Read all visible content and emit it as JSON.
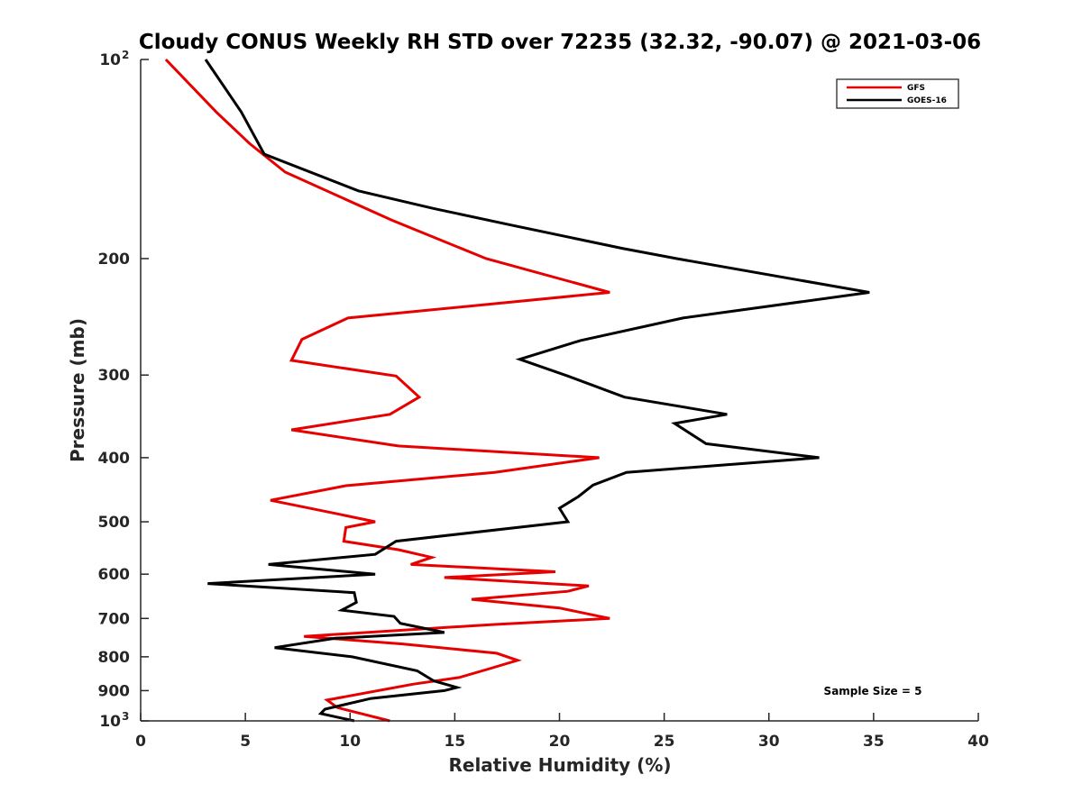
{
  "chart_data": {
    "type": "line",
    "title": "Cloudy CONUS Weekly RH STD over 72235 (32.32, -90.07) @ 2021-03-06",
    "xlabel": "Relative Humidity (%)",
    "ylabel": "Pressure (mb)",
    "xlim": [
      0,
      40
    ],
    "ylim": [
      100,
      1000
    ],
    "yscale": "log",
    "yreversed": true,
    "grid": false,
    "xticks": [
      0,
      5,
      10,
      15,
      20,
      25,
      30,
      35,
      40
    ],
    "xtick_labels": [
      "0",
      "5",
      "10",
      "15",
      "20",
      "25",
      "30",
      "35",
      "40"
    ],
    "yticks": [
      100,
      200,
      300,
      400,
      500,
      600,
      700,
      800,
      900,
      1000
    ],
    "ytick_labels": [
      "10",
      "200",
      "300",
      "400",
      "500",
      "600",
      "700",
      "800",
      "900",
      "10"
    ],
    "ytick_superscripts": {
      "0": "2",
      "9": "3"
    },
    "legend": {
      "placement": "top-right",
      "entries": [
        "GFS",
        "GOES-16"
      ]
    },
    "annotation": "Sample Size = 5",
    "series": [
      {
        "name": "GFS",
        "color": "#e60000",
        "points": [
          [
            1.2,
            100
          ],
          [
            3.6,
            120
          ],
          [
            5.2,
            134
          ],
          [
            6.9,
            148
          ],
          [
            12.0,
            175
          ],
          [
            16.5,
            200
          ],
          [
            22.4,
            225
          ],
          [
            9.9,
            246
          ],
          [
            7.7,
            265
          ],
          [
            7.2,
            285
          ],
          [
            12.2,
            301
          ],
          [
            13.3,
            324
          ],
          [
            11.9,
            344
          ],
          [
            7.2,
            363
          ],
          [
            12.3,
            384
          ],
          [
            21.9,
            400
          ],
          [
            16.9,
            421
          ],
          [
            9.8,
            441
          ],
          [
            6.2,
            464
          ],
          [
            9.2,
            485
          ],
          [
            11.2,
            500
          ],
          [
            9.8,
            510
          ],
          [
            9.7,
            535
          ],
          [
            12.3,
            551
          ],
          [
            13.9,
            566
          ],
          [
            12.9,
            580
          ],
          [
            19.8,
            595
          ],
          [
            14.5,
            607
          ],
          [
            21.4,
            625
          ],
          [
            20.4,
            637
          ],
          [
            15.8,
            655
          ],
          [
            20.0,
            675
          ],
          [
            22.4,
            700
          ],
          [
            16.8,
            715
          ],
          [
            7.8,
            745
          ],
          [
            12.5,
            765
          ],
          [
            17.0,
            790
          ],
          [
            18.0,
            810
          ],
          [
            16.6,
            835
          ],
          [
            15.2,
            860
          ],
          [
            13.0,
            880
          ],
          [
            8.9,
            930
          ],
          [
            9.4,
            955
          ],
          [
            11.9,
            1000
          ]
        ]
      },
      {
        "name": "GOES-16",
        "color": "#000000",
        "points": [
          [
            3.1,
            100
          ],
          [
            4.8,
            120
          ],
          [
            5.9,
            139
          ],
          [
            10.4,
            158
          ],
          [
            14.0,
            168
          ],
          [
            17.7,
            178
          ],
          [
            23.0,
            193
          ],
          [
            25.6,
            200
          ],
          [
            34.8,
            225
          ],
          [
            25.9,
            246
          ],
          [
            21.0,
            266
          ],
          [
            18.1,
            284
          ],
          [
            20.4,
            301
          ],
          [
            23.1,
            324
          ],
          [
            28.0,
            344
          ],
          [
            25.5,
            355
          ],
          [
            27.0,
            381
          ],
          [
            32.4,
            400
          ],
          [
            23.2,
            421
          ],
          [
            21.6,
            440
          ],
          [
            20.9,
            458
          ],
          [
            20.0,
            477
          ],
          [
            20.4,
            500
          ],
          [
            12.2,
            535
          ],
          [
            11.2,
            560
          ],
          [
            6.1,
            580
          ],
          [
            11.2,
            600
          ],
          [
            3.2,
            620
          ],
          [
            10.2,
            640
          ],
          [
            10.3,
            662
          ],
          [
            9.6,
            680
          ],
          [
            12.1,
            695
          ],
          [
            12.4,
            712
          ],
          [
            14.5,
            735
          ],
          [
            9.3,
            750
          ],
          [
            6.4,
            775
          ],
          [
            10.1,
            800
          ],
          [
            13.2,
            840
          ],
          [
            14.0,
            870
          ],
          [
            15.1,
            890
          ],
          [
            14.5,
            900
          ],
          [
            11.0,
            925
          ],
          [
            8.8,
            960
          ],
          [
            8.6,
            975
          ],
          [
            10.2,
            1000
          ]
        ]
      }
    ]
  }
}
